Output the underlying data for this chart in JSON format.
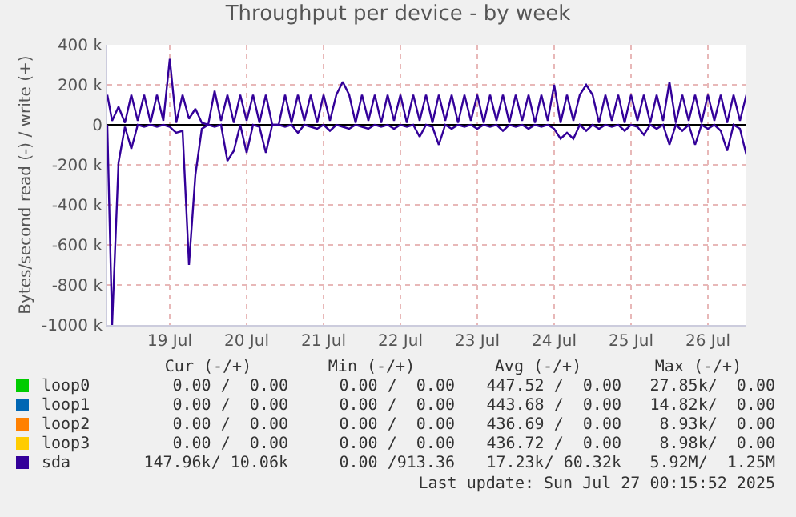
{
  "chart_data": {
    "type": "line",
    "title": "Throughput per device - by week",
    "ylabel": "Bytes/second read (-) / write (+)",
    "x": [
      "2025-07-18T16:30",
      "2025-07-18T18:00",
      "2025-07-18T20:00",
      "2025-07-18T22:00",
      "2025-07-19T00:00",
      "2025-07-19T02:00",
      "2025-07-19T04:00",
      "2025-07-19T06:00",
      "2025-07-19T08:00",
      "2025-07-19T10:00",
      "2025-07-19T12:00",
      "2025-07-19T14:00",
      "2025-07-19T16:00",
      "2025-07-19T18:00",
      "2025-07-19T20:00",
      "2025-07-19T22:00",
      "2025-07-20T00:00",
      "2025-07-20T02:00",
      "2025-07-20T04:00",
      "2025-07-20T06:00",
      "2025-07-20T08:00",
      "2025-07-20T10:00",
      "2025-07-20T12:00",
      "2025-07-20T14:00",
      "2025-07-20T16:00",
      "2025-07-20T18:00",
      "2025-07-20T20:00",
      "2025-07-20T22:00",
      "2025-07-21T00:00",
      "2025-07-21T02:00",
      "2025-07-21T04:00",
      "2025-07-21T06:00",
      "2025-07-21T08:00",
      "2025-07-21T10:00",
      "2025-07-21T12:00",
      "2025-07-21T14:00",
      "2025-07-21T16:00",
      "2025-07-21T18:00",
      "2025-07-21T20:00",
      "2025-07-21T22:00",
      "2025-07-22T00:00",
      "2025-07-22T02:00",
      "2025-07-22T04:00",
      "2025-07-22T06:00",
      "2025-07-22T08:00",
      "2025-07-22T10:00",
      "2025-07-22T12:00",
      "2025-07-22T14:00",
      "2025-07-22T16:00",
      "2025-07-22T18:00",
      "2025-07-22T20:00",
      "2025-07-22T22:00",
      "2025-07-23T00:00",
      "2025-07-23T02:00",
      "2025-07-23T04:00",
      "2025-07-23T06:00",
      "2025-07-23T08:00",
      "2025-07-23T10:00",
      "2025-07-23T12:00",
      "2025-07-23T14:00",
      "2025-07-23T16:00",
      "2025-07-23T18:00",
      "2025-07-23T20:00",
      "2025-07-23T22:00",
      "2025-07-24T00:00",
      "2025-07-24T02:00",
      "2025-07-24T04:00",
      "2025-07-24T06:00",
      "2025-07-24T08:00",
      "2025-07-24T10:00",
      "2025-07-24T12:00",
      "2025-07-24T14:00",
      "2025-07-24T16:00",
      "2025-07-24T18:00",
      "2025-07-24T20:00",
      "2025-07-24T22:00",
      "2025-07-25T00:00",
      "2025-07-25T02:00",
      "2025-07-25T04:00",
      "2025-07-25T06:00",
      "2025-07-25T08:00",
      "2025-07-25T10:00",
      "2025-07-25T12:00",
      "2025-07-25T14:00",
      "2025-07-25T16:00",
      "2025-07-25T18:00",
      "2025-07-25T20:00",
      "2025-07-25T22:00",
      "2025-07-26T00:00",
      "2025-07-26T02:00",
      "2025-07-26T04:00",
      "2025-07-26T06:00",
      "2025-07-26T08:00",
      "2025-07-26T10:00",
      "2025-07-26T12:00",
      "2025-07-26T14:00",
      "2025-07-26T16:00",
      "2025-07-26T18:00",
      "2025-07-26T20:00",
      "2025-07-26T22:00",
      "2025-07-27T00:00"
    ],
    "series": [
      {
        "name": "loop0",
        "color": "#00cc00",
        "values": [
          null,
          null,
          null,
          null,
          null,
          null,
          null,
          null,
          null,
          null,
          null,
          null,
          null,
          null,
          null,
          null,
          null,
          null,
          null,
          null,
          null,
          null,
          null,
          null,
          null,
          null,
          null,
          null,
          null,
          null,
          null,
          null,
          null,
          null,
          null,
          null,
          null,
          null,
          null,
          null,
          null,
          null,
          null,
          null,
          null,
          null,
          null,
          null,
          null,
          null,
          null,
          null,
          null,
          null,
          null,
          null,
          null,
          null,
          null,
          null,
          null,
          null,
          null,
          null,
          null,
          null,
          null,
          null,
          null,
          null,
          null,
          null,
          null,
          null,
          null,
          null,
          null,
          null,
          null,
          null,
          null,
          null,
          null,
          null,
          null,
          null,
          null,
          null,
          null,
          null,
          null,
          null,
          null,
          null,
          null,
          null,
          null,
          null,
          null,
          null,
          null
        ]
      },
      {
        "name": "loop1",
        "color": "#0066b3",
        "values": [
          null,
          null,
          null,
          null,
          null,
          null,
          null,
          null,
          null,
          null,
          null,
          null,
          null,
          null,
          null,
          null,
          null,
          null,
          null,
          null,
          null,
          null,
          null,
          null,
          null,
          null,
          null,
          null,
          null,
          null,
          null,
          null,
          null,
          null,
          null,
          null,
          null,
          null,
          null,
          null,
          null,
          null,
          null,
          null,
          null,
          null,
          null,
          null,
          null,
          null,
          null,
          null,
          null,
          null,
          null,
          null,
          null,
          null,
          null,
          null,
          null,
          null,
          null,
          null,
          null,
          null,
          null,
          null,
          null,
          null,
          null,
          null,
          null,
          null,
          null,
          null,
          null,
          null,
          null,
          null,
          null,
          null,
          null,
          null,
          null,
          null,
          null,
          null,
          null,
          null,
          null,
          null,
          null,
          null,
          null,
          null,
          null,
          null,
          null,
          null,
          null
        ]
      },
      {
        "name": "loop2",
        "color": "#ff8000",
        "values": [
          null,
          null,
          null,
          null,
          null,
          null,
          null,
          null,
          null,
          null,
          null,
          null,
          null,
          null,
          null,
          null,
          null,
          null,
          null,
          null,
          null,
          null,
          null,
          null,
          null,
          null,
          null,
          null,
          null,
          null,
          null,
          null,
          null,
          null,
          null,
          null,
          null,
          null,
          null,
          null,
          null,
          null,
          null,
          null,
          null,
          null,
          null,
          null,
          null,
          null,
          null,
          null,
          null,
          null,
          null,
          null,
          null,
          null,
          null,
          null,
          null,
          null,
          null,
          null,
          null,
          null,
          null,
          null,
          null,
          null,
          null,
          null,
          null,
          null,
          null,
          null,
          null,
          null,
          null,
          null,
          null,
          null,
          null,
          null,
          null,
          null,
          null,
          null,
          null,
          null,
          null,
          null,
          null,
          null,
          null,
          null,
          null,
          null,
          null,
          null,
          null
        ]
      },
      {
        "name": "loop3",
        "color": "#ffcc00",
        "values": [
          null,
          null,
          null,
          null,
          null,
          null,
          null,
          null,
          null,
          null,
          null,
          null,
          null,
          null,
          null,
          null,
          null,
          null,
          null,
          null,
          null,
          null,
          null,
          null,
          null,
          null,
          null,
          null,
          null,
          null,
          null,
          null,
          null,
          null,
          null,
          null,
          null,
          null,
          null,
          null,
          null,
          null,
          null,
          null,
          null,
          null,
          null,
          null,
          null,
          null,
          null,
          null,
          null,
          null,
          null,
          null,
          null,
          null,
          null,
          null,
          null,
          null,
          null,
          null,
          null,
          null,
          null,
          null,
          null,
          null,
          null,
          null,
          null,
          null,
          null,
          null,
          null,
          null,
          null,
          null,
          null,
          null,
          null,
          null,
          null,
          null,
          null,
          null,
          null,
          null,
          null,
          null,
          null,
          null,
          null,
          null,
          null,
          null,
          null,
          null,
          null
        ]
      },
      {
        "name": "sda",
        "color": "#330099",
        "values": [
          150000,
          20000,
          90000,
          10000,
          150000,
          20000,
          150000,
          10000,
          150000,
          20000,
          330000,
          10000,
          150000,
          30000,
          80000,
          10000,
          0,
          170000,
          20000,
          150000,
          10000,
          150000,
          20000,
          150000,
          10000,
          150000,
          0,
          0,
          150000,
          10000,
          150000,
          20000,
          150000,
          10000,
          150000,
          20000,
          150000,
          215000,
          150000,
          10000,
          150000,
          20000,
          150000,
          10000,
          150000,
          20000,
          150000,
          10000,
          150000,
          20000,
          150000,
          10000,
          150000,
          20000,
          150000,
          10000,
          150000,
          20000,
          150000,
          10000,
          150000,
          20000,
          150000,
          10000,
          150000,
          20000,
          150000,
          10000,
          150000,
          20000,
          200000,
          10000,
          150000,
          20000,
          150000,
          200000,
          150000,
          10000,
          150000,
          20000,
          150000,
          10000,
          150000,
          20000,
          150000,
          10000,
          150000,
          20000,
          215000,
          10000,
          150000,
          20000,
          150000,
          10000,
          150000,
          20000,
          150000,
          10000,
          150000,
          20000,
          150000
        ]
      },
      {
        "color": "#330099",
        "values": [
          0,
          -1000000,
          -190000,
          -10000,
          -120000,
          0,
          -10000,
          0,
          -10000,
          0,
          -10000,
          -40000,
          -30000,
          -700000,
          -250000,
          -20000,
          0,
          -10000,
          0,
          -180000,
          -130000,
          0,
          -140000,
          0,
          -10000,
          -140000,
          0,
          0,
          -10000,
          0,
          -40000,
          0,
          -10000,
          -20000,
          0,
          -30000,
          0,
          -10000,
          -20000,
          0,
          -10000,
          -20000,
          0,
          -10000,
          0,
          -20000,
          0,
          -10000,
          0,
          -60000,
          0,
          -10000,
          -100000,
          0,
          -20000,
          0,
          -10000,
          0,
          -20000,
          0,
          -10000,
          0,
          -30000,
          0,
          -10000,
          0,
          -20000,
          0,
          -10000,
          0,
          -20000,
          -70000,
          -40000,
          -70000,
          0,
          -30000,
          0,
          -20000,
          0,
          -10000,
          0,
          -30000,
          0,
          -10000,
          -50000,
          0,
          -20000,
          0,
          -100000,
          0,
          -30000,
          0,
          -100000,
          0,
          -20000,
          0,
          -30000,
          -130000,
          0,
          -20000,
          -150000
        ]
      }
    ],
    "xlim": [
      "2025-07-18T16:30",
      "2025-07-27T00:00"
    ],
    "xticks": [
      {
        "value": "2025-07-19T12:00",
        "label": "19 Jul"
      },
      {
        "value": "2025-07-20T12:00",
        "label": "20 Jul"
      },
      {
        "value": "2025-07-21T12:00",
        "label": "21 Jul"
      },
      {
        "value": "2025-07-22T12:00",
        "label": "22 Jul"
      },
      {
        "value": "2025-07-23T12:00",
        "label": "23 Jul"
      },
      {
        "value": "2025-07-24T12:00",
        "label": "24 Jul"
      },
      {
        "value": "2025-07-25T12:00",
        "label": "25 Jul"
      },
      {
        "value": "2025-07-26T12:00",
        "label": "26 Jul"
      }
    ],
    "ylim": [
      -1000000,
      400000
    ],
    "yticks": [
      {
        "value": -1000000,
        "label": "-1000 k"
      },
      {
        "value": -800000,
        "label": "-800 k"
      },
      {
        "value": -600000,
        "label": "-600 k"
      },
      {
        "value": -400000,
        "label": "-400 k"
      },
      {
        "value": -200000,
        "label": "-200 k"
      },
      0,
      {
        "value": 200000,
        "label": "200 k"
      },
      {
        "value": 400000,
        "label": "400 k"
      }
    ],
    "grid": true,
    "legend": "bottom",
    "annotations": [
      "Cur (-/+)",
      "Min (-/+)",
      "Avg (-/+)",
      "Max (-/+)",
      "0.00 /  0.00",
      "0.00 /  0.00",
      "447.52 /  0.00",
      "27.85k/  0.00",
      "0.00 /  0.00",
      "0.00 /  0.00",
      "443.68 /  0.00",
      "14.82k/  0.00",
      "0.00 /  0.00",
      "0.00 /  0.00",
      "436.69 /  0.00",
      "8.93k/  0.00",
      "0.00 /  0.00",
      "0.00 /  0.00",
      "436.72 /  0.00",
      "8.98k/  0.00",
      "147.96k/ 10.06k",
      "0.00 /913.36",
      "17.23k/ 60.32k",
      "5.92M/  1.25M",
      "Last update: Sun Jul 27 00:15:52 2025"
    ]
  }
}
